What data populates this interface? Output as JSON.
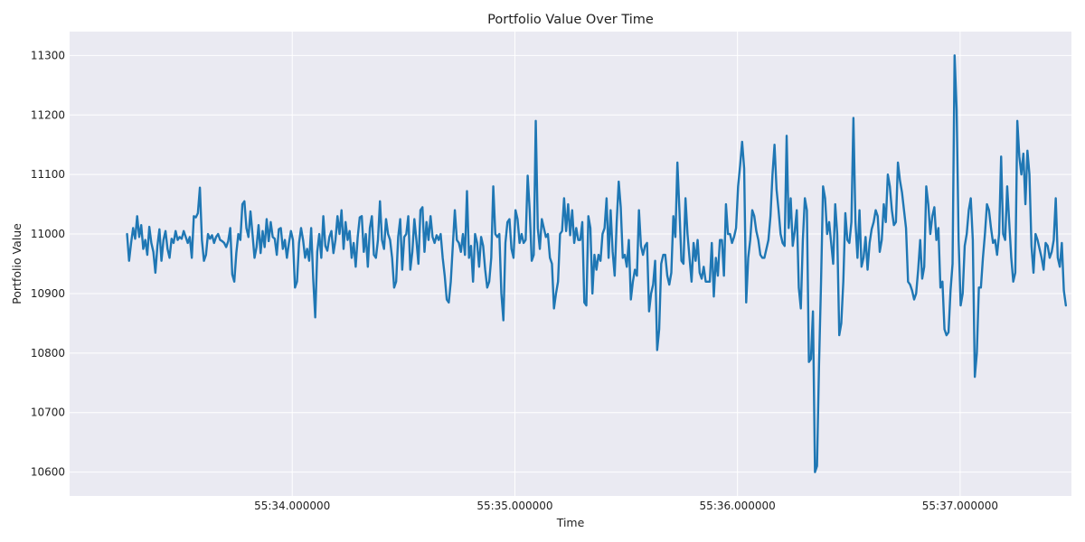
{
  "chart_data": {
    "type": "line",
    "title": "Portfolio Value Over Time",
    "xlabel": "Time",
    "ylabel": "Portfolio Value",
    "x_ticks": [
      "55:34.000000",
      "55:35.000000",
      "55:36.000000",
      "55:37.000000"
    ],
    "y_ticks": [
      10600,
      10700,
      10800,
      10900,
      11000,
      11100,
      11200,
      11300
    ],
    "xlim": [
      "55:33.000000",
      "55:37.500000"
    ],
    "ylim": [
      10560,
      11340
    ],
    "grid": true,
    "style": "seaborn-darkgrid",
    "colors": {
      "line": "#1f77b4",
      "plot_background": "#eaeaf2",
      "grid": "#ffffff"
    },
    "series": [
      {
        "x_start": "55:33.258000",
        "x_end": "55:37.475000",
        "values": [
          11000,
          10955,
          10985,
          11010,
          10992,
          11030,
          10995,
          11015,
          10975,
          10990,
          10965,
          11012,
          10985,
          10970,
          10935,
          10980,
          11008,
          10955,
          10990,
          11005,
          10975,
          10960,
          10992,
          10985,
          11005,
          10990,
          10995,
          10992,
          11005,
          10995,
          10985,
          10995,
          10960,
          11030,
          11028,
          11035,
          11078,
          10990,
          10955,
          10965,
          11000,
          10992,
          10998,
          10985,
          10995,
          11000,
          10990,
          10988,
          10985,
          10978,
          10988,
          11010,
          10932,
          10920,
          10968,
          11000,
          10990,
          11050,
          11055,
          11010,
          10995,
          11038,
          11000,
          10960,
          10978,
          11015,
          10968,
          11005,
          10978,
          11025,
          10988,
          11020,
          10995,
          10992,
          10965,
          11008,
          11010,
          10975,
          10990,
          10960,
          10985,
          11005,
          10990,
          10910,
          10920,
          10985,
          11010,
          10990,
          10960,
          10975,
          10955,
          11010,
          10925,
          10860,
          10970,
          11000,
          10960,
          11030,
          10980,
          10972,
          10995,
          11005,
          10968,
          10990,
          11030,
          11000,
          11040,
          10975,
          11020,
          10990,
          11005,
          10960,
          10985,
          10945,
          10995,
          11028,
          11030,
          10970,
          11000,
          10945,
          11010,
          11030,
          10965,
          10960,
          10990,
          11055,
          10990,
          10975,
          11025,
          11000,
          10990,
          10960,
          10910,
          10920,
          10995,
          11025,
          10940,
          10995,
          11000,
          11030,
          10940,
          10970,
          11025,
          10990,
          10950,
          11040,
          11045,
          10970,
          11020,
          10990,
          11030,
          10995,
          10985,
          10998,
          10990,
          11000,
          10960,
          10930,
          10890,
          10885,
          10920,
          10980,
          11040,
          10990,
          10985,
          10970,
          11000,
          10965,
          11072,
          10960,
          10980,
          10920,
          11000,
          10985,
          10945,
          10995,
          10980,
          10940,
          10910,
          10920,
          10960,
          11080,
          11000,
          10995,
          11000,
          10900,
          10855,
          10985,
          11020,
          11025,
          10975,
          10960,
          11040,
          11025,
          10985,
          11000,
          10985,
          10990,
          11098,
          11040,
          10955,
          10965,
          11190,
          11010,
          10975,
          11025,
          11010,
          10995,
          11000,
          10960,
          10950,
          10875,
          10900,
          10920,
          11000,
          11005,
          11060,
          11005,
          11050,
          10998,
          11040,
          10985,
          11010,
          10990,
          10990,
          11020,
          10885,
          10880,
          11030,
          11010,
          10900,
          10965,
          10940,
          10965,
          10955,
          11000,
          11010,
          11060,
          10960,
          11040,
          10970,
          10930,
          11020,
          11088,
          11045,
          10960,
          10965,
          10945,
          10990,
          10890,
          10920,
          10940,
          10930,
          11040,
          10980,
          10965,
          10980,
          10985,
          10870,
          10900,
          10915,
          10955,
          10805,
          10840,
          10950,
          10965,
          10965,
          10930,
          10915,
          10935,
          11030,
          10995,
          11120,
          11040,
          10955,
          10950,
          11060,
          11000,
          10960,
          10920,
          10985,
          10955,
          10990,
          10935,
          10925,
          10945,
          10920,
          10920,
          10920,
          10985,
          10895,
          10960,
          10930,
          10990,
          10990,
          10930,
          11050,
          11000,
          11000,
          10985,
          10995,
          11010,
          11080,
          11115,
          11155,
          11110,
          10885,
          10960,
          10990,
          11040,
          11030,
          11005,
          10990,
          10965,
          10960,
          10960,
          10975,
          10990,
          11030,
          11100,
          11150,
          11075,
          11040,
          11000,
          10985,
          10980,
          11165,
          11010,
          11060,
          10980,
          11005,
          11040,
          10910,
          10875,
          10990,
          11060,
          11040,
          10785,
          10790,
          10870,
          10600,
          10610,
          10780,
          10920,
          11080,
          11060,
          11000,
          11020,
          10985,
          10950,
          11050,
          11000,
          10830,
          10850,
          10920,
          11035,
          10990,
          10985,
          11020,
          11195,
          11020,
          10960,
          11040,
          10945,
          10960,
          10995,
          10940,
          10985,
          11008,
          11020,
          11040,
          11030,
          10970,
          10990,
          11050,
          11020,
          11100,
          11080,
          11040,
          11015,
          11020,
          11120,
          11090,
          11070,
          11040,
          11010,
          10920,
          10915,
          10905,
          10890,
          10900,
          10940,
          10990,
          10925,
          10945,
          11080,
          11050,
          11000,
          11030,
          11045,
          10990,
          11010,
          10910,
          10920,
          10840,
          10830,
          10835,
          10905,
          10950,
          11300,
          11210,
          10990,
          10880,
          10900,
          10980,
          11000,
          11040,
          11060,
          10990,
          10760,
          10800,
          10910,
          10910,
          10960,
          11000,
          11050,
          11040,
          11010,
          10985,
          10990,
          10965,
          11000,
          11130,
          11000,
          10990,
          11080,
          11020,
          10960,
          10920,
          10935,
          11190,
          11130,
          11100,
          11135,
          11050,
          11140,
          11100,
          10980,
          10935,
          11000,
          10990,
          10975,
          10960,
          10940,
          10985,
          10980,
          10960,
          10970,
          10990,
          11060,
          10960,
          10945,
          10985,
          10905,
          10880
        ]
      }
    ]
  }
}
